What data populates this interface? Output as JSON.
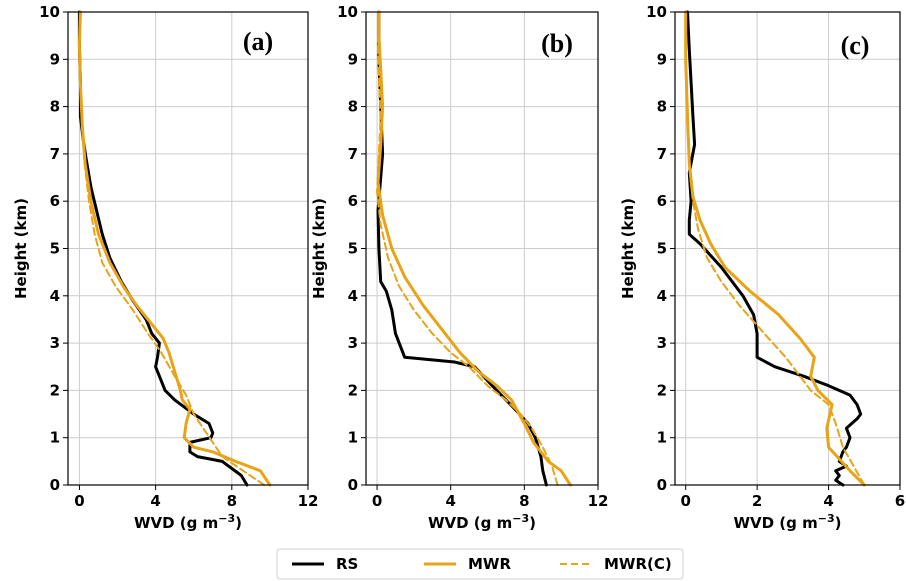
{
  "chart_data": [
    {
      "type": "line",
      "panel_label": "(a)",
      "xlabel": "WVD (g m",
      "xlabel_sup": "−3",
      "xlabel_close": ")",
      "ylabel": "Height (km)",
      "xlim": [
        -0.6,
        12
      ],
      "ylim": [
        0,
        10
      ],
      "xticks": [
        0,
        4,
        8,
        12
      ],
      "yticks": [
        0,
        1,
        2,
        3,
        4,
        5,
        6,
        7,
        8,
        9,
        10
      ],
      "grid": true,
      "series": [
        {
          "name": "RS",
          "style": "solid-black",
          "points": [
            [
              8.8,
              0.0
            ],
            [
              8.5,
              0.2
            ],
            [
              7.5,
              0.5
            ],
            [
              6.2,
              0.6
            ],
            [
              5.8,
              0.7
            ],
            [
              5.8,
              0.9
            ],
            [
              6.9,
              1.0
            ],
            [
              7.0,
              1.1
            ],
            [
              6.8,
              1.3
            ],
            [
              6.0,
              1.5
            ],
            [
              5.0,
              1.8
            ],
            [
              4.5,
              2.0
            ],
            [
              4.2,
              2.3
            ],
            [
              4.0,
              2.5
            ],
            [
              4.1,
              2.7
            ],
            [
              4.2,
              3.0
            ],
            [
              3.8,
              3.2
            ],
            [
              3.5,
              3.5
            ],
            [
              2.8,
              3.9
            ],
            [
              2.2,
              4.3
            ],
            [
              1.6,
              4.8
            ],
            [
              1.2,
              5.3
            ],
            [
              0.9,
              5.8
            ],
            [
              0.6,
              6.3
            ],
            [
              0.35,
              6.9
            ],
            [
              0.2,
              7.3
            ],
            [
              0.05,
              7.8
            ],
            [
              0.05,
              8.5
            ],
            [
              0.0,
              9.3
            ],
            [
              0.0,
              10.0
            ]
          ]
        },
        {
          "name": "MWR",
          "style": "solid-orange",
          "points": [
            [
              10.0,
              0.0
            ],
            [
              9.5,
              0.3
            ],
            [
              8.2,
              0.5
            ],
            [
              7.0,
              0.7
            ],
            [
              6.0,
              0.8
            ],
            [
              5.5,
              1.0
            ],
            [
              5.6,
              1.3
            ],
            [
              5.8,
              1.6
            ],
            [
              5.4,
              1.8
            ],
            [
              5.3,
              2.0
            ],
            [
              5.0,
              2.4
            ],
            [
              4.7,
              2.8
            ],
            [
              4.4,
              3.1
            ],
            [
              3.8,
              3.4
            ],
            [
              3.0,
              3.8
            ],
            [
              2.3,
              4.2
            ],
            [
              1.6,
              4.7
            ],
            [
              1.0,
              5.3
            ],
            [
              0.6,
              6.0
            ],
            [
              0.3,
              6.8
            ],
            [
              0.15,
              7.6
            ],
            [
              0.05,
              8.5
            ],
            [
              0.0,
              9.3
            ],
            [
              0.05,
              10.0
            ]
          ]
        },
        {
          "name": "MWR(C)",
          "style": "dashed-orange",
          "points": [
            [
              9.7,
              0.0
            ],
            [
              8.6,
              0.3
            ],
            [
              7.5,
              0.6
            ],
            [
              7.0,
              0.9
            ],
            [
              6.5,
              1.2
            ],
            [
              6.0,
              1.5
            ],
            [
              5.6,
              1.9
            ],
            [
              5.0,
              2.3
            ],
            [
              4.3,
              2.8
            ],
            [
              3.6,
              3.2
            ],
            [
              2.8,
              3.7
            ],
            [
              1.9,
              4.2
            ],
            [
              1.2,
              4.7
            ],
            [
              0.8,
              5.3
            ],
            [
              0.5,
              6.0
            ],
            [
              0.3,
              6.7
            ],
            [
              0.15,
              7.5
            ],
            [
              0.05,
              8.4
            ],
            [
              0.0,
              9.3
            ],
            [
              0.05,
              10.0
            ]
          ]
        }
      ]
    },
    {
      "type": "line",
      "panel_label": "(b)",
      "xlabel": "WVD (g m",
      "xlabel_sup": "−3",
      "xlabel_close": ")",
      "ylabel": "Height (km)",
      "xlim": [
        -0.6,
        12
      ],
      "ylim": [
        0,
        10
      ],
      "xticks": [
        0,
        4,
        8,
        12
      ],
      "yticks": [
        0,
        1,
        2,
        3,
        4,
        5,
        6,
        7,
        8,
        9,
        10
      ],
      "grid": true,
      "series": [
        {
          "name": "RS",
          "style": "solid-black",
          "points": [
            [
              9.2,
              0.0
            ],
            [
              9.0,
              0.3
            ],
            [
              8.9,
              0.6
            ],
            [
              8.6,
              1.0
            ],
            [
              8.2,
              1.3
            ],
            [
              7.5,
              1.6
            ],
            [
              6.5,
              2.0
            ],
            [
              5.3,
              2.5
            ],
            [
              4.2,
              2.6
            ],
            [
              1.5,
              2.7
            ],
            [
              1.0,
              3.2
            ],
            [
              0.8,
              3.7
            ],
            [
              0.5,
              4.1
            ],
            [
              0.2,
              4.3
            ],
            [
              0.1,
              5.0
            ],
            [
              0.05,
              5.8
            ],
            [
              0.2,
              6.5
            ],
            [
              0.3,
              7.0
            ],
            [
              0.2,
              8.0
            ],
            [
              0.1,
              9.0
            ],
            [
              0.1,
              10.0
            ]
          ]
        },
        {
          "name": "MWR",
          "style": "solid-orange",
          "points": [
            [
              10.5,
              0.0
            ],
            [
              10.0,
              0.3
            ],
            [
              9.3,
              0.5
            ],
            [
              8.5,
              0.9
            ],
            [
              8.0,
              1.3
            ],
            [
              7.3,
              1.8
            ],
            [
              6.5,
              2.1
            ],
            [
              5.5,
              2.4
            ],
            [
              4.5,
              2.8
            ],
            [
              3.5,
              3.3
            ],
            [
              2.5,
              3.8
            ],
            [
              1.5,
              4.4
            ],
            [
              0.8,
              5.0
            ],
            [
              0.3,
              5.7
            ],
            [
              0.05,
              6.4
            ],
            [
              0.2,
              7.2
            ],
            [
              0.3,
              8.0
            ],
            [
              0.2,
              8.8
            ],
            [
              0.1,
              9.5
            ],
            [
              0.1,
              10.0
            ]
          ]
        },
        {
          "name": "MWR(C)",
          "style": "dashed-orange",
          "points": [
            [
              9.8,
              0.0
            ],
            [
              9.5,
              0.4
            ],
            [
              9.0,
              0.8
            ],
            [
              8.4,
              1.2
            ],
            [
              7.8,
              1.5
            ],
            [
              7.0,
              1.8
            ],
            [
              6.0,
              2.1
            ],
            [
              5.0,
              2.5
            ],
            [
              4.0,
              2.8
            ],
            [
              3.0,
              3.2
            ],
            [
              2.0,
              3.7
            ],
            [
              1.2,
              4.2
            ],
            [
              0.6,
              4.8
            ],
            [
              0.2,
              5.5
            ],
            [
              0.0,
              6.2
            ],
            [
              0.1,
              7.0
            ],
            [
              0.2,
              7.8
            ],
            [
              0.1,
              8.6
            ],
            [
              0.05,
              9.4
            ],
            [
              0.1,
              10.0
            ]
          ]
        }
      ]
    },
    {
      "type": "line",
      "panel_label": "(c)",
      "xlabel": "WVD (g m",
      "xlabel_sup": "−3",
      "xlabel_close": ")",
      "ylabel": "Height (km)",
      "xlim": [
        -0.3,
        6
      ],
      "ylim": [
        0,
        10
      ],
      "xticks": [
        0,
        2,
        4,
        6
      ],
      "yticks": [
        0,
        1,
        2,
        3,
        4,
        5,
        6,
        7,
        8,
        9,
        10
      ],
      "grid": true,
      "series": [
        {
          "name": "RS",
          "style": "solid-black",
          "points": [
            [
              4.4,
              0.0
            ],
            [
              4.2,
              0.1
            ],
            [
              4.3,
              0.2
            ],
            [
              4.2,
              0.3
            ],
            [
              4.5,
              0.4
            ],
            [
              4.3,
              0.5
            ],
            [
              4.4,
              0.7
            ],
            [
              4.5,
              0.8
            ],
            [
              4.6,
              1.0
            ],
            [
              4.5,
              1.2
            ],
            [
              4.8,
              1.4
            ],
            [
              4.9,
              1.5
            ],
            [
              4.8,
              1.7
            ],
            [
              4.6,
              1.9
            ],
            [
              4.0,
              2.1
            ],
            [
              3.3,
              2.3
            ],
            [
              2.5,
              2.5
            ],
            [
              2.0,
              2.7
            ],
            [
              2.0,
              3.2
            ],
            [
              1.9,
              3.6
            ],
            [
              1.6,
              4.0
            ],
            [
              1.0,
              4.6
            ],
            [
              0.4,
              5.1
            ],
            [
              0.1,
              5.3
            ],
            [
              0.1,
              5.6
            ],
            [
              0.15,
              6.0
            ],
            [
              0.1,
              6.6
            ],
            [
              0.25,
              7.2
            ],
            [
              0.2,
              7.8
            ],
            [
              0.15,
              8.5
            ],
            [
              0.1,
              9.2
            ],
            [
              0.05,
              10.0
            ]
          ]
        },
        {
          "name": "MWR",
          "style": "solid-orange",
          "points": [
            [
              5.0,
              0.0
            ],
            [
              4.6,
              0.3
            ],
            [
              4.0,
              0.8
            ],
            [
              3.95,
              1.2
            ],
            [
              4.1,
              1.7
            ],
            [
              3.7,
              2.0
            ],
            [
              3.5,
              2.3
            ],
            [
              3.6,
              2.7
            ],
            [
              3.2,
              3.1
            ],
            [
              2.6,
              3.6
            ],
            [
              1.8,
              4.1
            ],
            [
              1.1,
              4.6
            ],
            [
              0.7,
              5.1
            ],
            [
              0.4,
              5.6
            ],
            [
              0.2,
              6.1
            ],
            [
              0.1,
              6.8
            ],
            [
              0.05,
              7.8
            ],
            [
              0.0,
              9.0
            ],
            [
              0.0,
              10.0
            ]
          ]
        },
        {
          "name": "MWR(C)",
          "style": "dashed-orange",
          "points": [
            [
              5.0,
              0.0
            ],
            [
              4.7,
              0.4
            ],
            [
              4.4,
              0.8
            ],
            [
              4.2,
              1.3
            ],
            [
              4.0,
              1.7
            ],
            [
              3.5,
              2.0
            ],
            [
              3.2,
              2.3
            ],
            [
              2.8,
              2.7
            ],
            [
              2.2,
              3.2
            ],
            [
              1.5,
              3.8
            ],
            [
              1.0,
              4.3
            ],
            [
              0.6,
              4.8
            ],
            [
              0.35,
              5.4
            ],
            [
              0.2,
              6.0
            ],
            [
              0.1,
              6.7
            ],
            [
              0.05,
              7.6
            ],
            [
              0.0,
              8.8
            ],
            [
              0.0,
              10.0
            ]
          ]
        }
      ]
    }
  ],
  "legend": {
    "placement": "bottom-center",
    "entries": [
      {
        "label": "RS",
        "style": "solid-black"
      },
      {
        "label": "MWR",
        "style": "solid-orange"
      },
      {
        "label": "MWR(C)",
        "style": "dashed-orange"
      }
    ]
  },
  "colors": {
    "rs": "#000000",
    "mwr": "#e8a317",
    "mwrc": "#e8a317",
    "grid": "#cccccc"
  }
}
